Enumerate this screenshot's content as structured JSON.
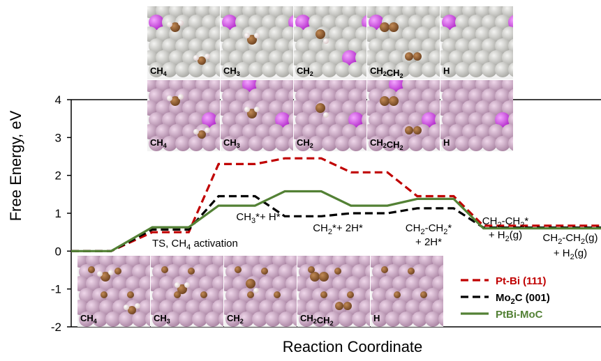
{
  "chart_data": {
    "type": "line",
    "title": "",
    "xlabel": "Reaction Coordinate",
    "ylabel": "Free Energy, eV",
    "ylim": [
      -2,
      4
    ],
    "yticks": [
      "-2",
      "-1",
      "0",
      "1",
      "2",
      "3",
      "4"
    ],
    "grid": false,
    "legend_position": "bottom-right",
    "step_count": 8,
    "series": [
      {
        "name": "Pt-Bi (111)",
        "color": "#c00000",
        "dash": "dashed",
        "values": [
          0.0,
          0.5,
          2.3,
          2.45,
          2.08,
          1.45,
          0.67
        ]
      },
      {
        "name": "Mo2C (001)",
        "color": "#000000",
        "dash": "dashed",
        "values": [
          0.0,
          0.57,
          1.45,
          0.92,
          1.0,
          1.13,
          0.62
        ]
      },
      {
        "name": "PtBi-MoC",
        "color": "#538135",
        "dash": "solid",
        "values": [
          0.0,
          0.63,
          1.2,
          1.58,
          1.2,
          1.38,
          0.6
        ]
      }
    ],
    "annotations": [
      {
        "id": "ts",
        "text": "TS, CH",
        "sub": "4",
        "tail": " activation"
      },
      {
        "id": "ch3h",
        "text": "CH",
        "sub": "3",
        "tail": "*+ H*"
      },
      {
        "id": "ch22h",
        "text": "CH",
        "sub": "2",
        "tail": "*+ 2H*"
      },
      {
        "id": "ch2ch2-a1",
        "text": "CH",
        "sub": "2",
        "tail": "-CH",
        "sub2": "2",
        "tail2": "*"
      },
      {
        "id": "ch2ch2-a2",
        "text": "+ 2H*"
      },
      {
        "id": "ch2ch2-b1",
        "text": "CH",
        "sub": "2",
        "tail": "-CH",
        "sub2": "2",
        "tail2": "*"
      },
      {
        "id": "ch2ch2-b2",
        "text": "+ H",
        "sub": "2",
        "tail": "(g)"
      },
      {
        "id": "ch2ch2-c1",
        "text": "CH",
        "sub": "2",
        "tail": "-CH",
        "sub2": "2",
        "tail2": "(g)"
      },
      {
        "id": "ch2ch2-c2",
        "text": "+ H",
        "sub": "2",
        "tail": "(g)"
      }
    ]
  },
  "legend": {
    "items": [
      {
        "label": "Pt-Bi (111)",
        "color": "#c00000",
        "dash": "dashed"
      },
      {
        "label": "Mo",
        "sub": "2",
        "tail": "C (001)",
        "color": "#000000",
        "dash": "dashed"
      },
      {
        "label": "PtBi-MoC",
        "color": "#538135",
        "dash": "solid"
      }
    ]
  },
  "structure_panels": {
    "top_row_labels": [
      [
        "CH",
        "4"
      ],
      [
        "CH",
        "3"
      ],
      [
        "CH",
        "2"
      ],
      [
        "CH",
        "2",
        "CH",
        "2"
      ],
      [
        "H"
      ]
    ],
    "middle_row_labels": [
      [
        "CH",
        "4"
      ],
      [
        "CH",
        "3"
      ],
      [
        "CH",
        "2"
      ],
      [
        "CH",
        "2",
        "CH",
        "2"
      ],
      [
        "H"
      ]
    ],
    "bottom_row_labels": [
      [
        "CH",
        "4"
      ],
      [
        "CH",
        "3"
      ],
      [
        "CH",
        "2"
      ],
      [
        "CH",
        "2",
        "CH",
        "2"
      ],
      [
        "H"
      ]
    ],
    "colors": {
      "pt": "#d6d6d0",
      "bi": "#d04ce0",
      "mo": "#cfa9c8",
      "c": "#8c5a2e",
      "h": "#f4e8e8"
    }
  }
}
